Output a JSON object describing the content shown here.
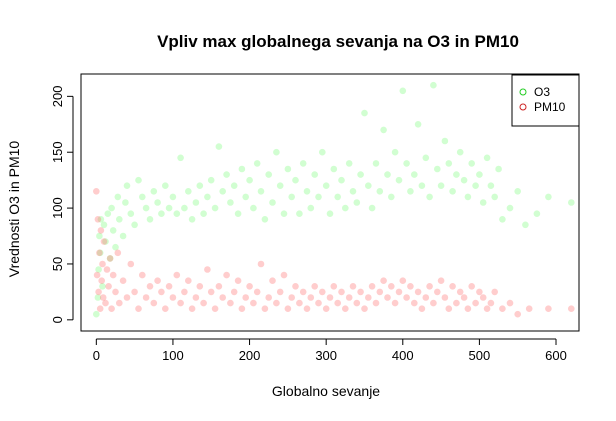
{
  "chart_data": {
    "type": "scatter",
    "title": "Vpliv max globalnega sevanja na O3 in PM10",
    "xlabel": "Globalno sevanje",
    "ylabel": "Vrednosti O3 in PM10",
    "xlim": [
      -20,
      630
    ],
    "ylim": [
      -10,
      220
    ],
    "xticks": [
      0,
      100,
      200,
      300,
      400,
      500,
      600
    ],
    "yticks": [
      0,
      50,
      100,
      150,
      200
    ],
    "grid": false,
    "legend_position": "top-right",
    "series": [
      {
        "name": "O3",
        "color": "#7CFC7C",
        "point_style": "filled-circle-translucent",
        "points": [
          [
            0,
            5
          ],
          [
            2,
            20
          ],
          [
            3,
            45
          ],
          [
            5,
            60
          ],
          [
            4,
            75
          ],
          [
            6,
            90
          ],
          [
            8,
            30
          ],
          [
            10,
            85
          ],
          [
            12,
            70
          ],
          [
            15,
            95
          ],
          [
            18,
            55
          ],
          [
            20,
            100
          ],
          [
            22,
            80
          ],
          [
            25,
            65
          ],
          [
            28,
            110
          ],
          [
            30,
            90
          ],
          [
            35,
            75
          ],
          [
            38,
            105
          ],
          [
            40,
            120
          ],
          [
            45,
            95
          ],
          [
            50,
            85
          ],
          [
            55,
            125
          ],
          [
            60,
            110
          ],
          [
            65,
            100
          ],
          [
            70,
            90
          ],
          [
            75,
            115
          ],
          [
            80,
            105
          ],
          [
            85,
            95
          ],
          [
            90,
            120
          ],
          [
            95,
            100
          ],
          [
            100,
            110
          ],
          [
            105,
            95
          ],
          [
            110,
            145
          ],
          [
            115,
            100
          ],
          [
            120,
            115
          ],
          [
            125,
            90
          ],
          [
            130,
            105
          ],
          [
            135,
            120
          ],
          [
            140,
            95
          ],
          [
            145,
            110
          ],
          [
            150,
            125
          ],
          [
            155,
            100
          ],
          [
            160,
            155
          ],
          [
            165,
            115
          ],
          [
            170,
            130
          ],
          [
            175,
            105
          ],
          [
            180,
            120
          ],
          [
            185,
            95
          ],
          [
            190,
            135
          ],
          [
            195,
            110
          ],
          [
            200,
            125
          ],
          [
            205,
            100
          ],
          [
            210,
            140
          ],
          [
            215,
            115
          ],
          [
            220,
            90
          ],
          [
            225,
            130
          ],
          [
            230,
            105
          ],
          [
            235,
            150
          ],
          [
            240,
            120
          ],
          [
            245,
            95
          ],
          [
            250,
            135
          ],
          [
            255,
            110
          ],
          [
            260,
            125
          ],
          [
            265,
            95
          ],
          [
            270,
            140
          ],
          [
            275,
            115
          ],
          [
            280,
            100
          ],
          [
            285,
            130
          ],
          [
            290,
            110
          ],
          [
            295,
            150
          ],
          [
            300,
            120
          ],
          [
            305,
            95
          ],
          [
            310,
            135
          ],
          [
            315,
            110
          ],
          [
            320,
            125
          ],
          [
            325,
            100
          ],
          [
            330,
            140
          ],
          [
            335,
            115
          ],
          [
            340,
            105
          ],
          [
            345,
            130
          ],
          [
            350,
            185
          ],
          [
            355,
            120
          ],
          [
            360,
            100
          ],
          [
            365,
            140
          ],
          [
            370,
            115
          ],
          [
            375,
            170
          ],
          [
            380,
            130
          ],
          [
            385,
            110
          ],
          [
            390,
            150
          ],
          [
            395,
            125
          ],
          [
            400,
            205
          ],
          [
            405,
            140
          ],
          [
            410,
            115
          ],
          [
            415,
            130
          ],
          [
            420,
            175
          ],
          [
            425,
            120
          ],
          [
            430,
            145
          ],
          [
            435,
            110
          ],
          [
            440,
            210
          ],
          [
            445,
            135
          ],
          [
            450,
            120
          ],
          [
            455,
            160
          ],
          [
            460,
            140
          ],
          [
            465,
            115
          ],
          [
            470,
            130
          ],
          [
            475,
            150
          ],
          [
            480,
            125
          ],
          [
            485,
            110
          ],
          [
            490,
            140
          ],
          [
            495,
            120
          ],
          [
            500,
            130
          ],
          [
            505,
            105
          ],
          [
            510,
            145
          ],
          [
            515,
            120
          ],
          [
            520,
            110
          ],
          [
            525,
            135
          ],
          [
            530,
            90
          ],
          [
            540,
            100
          ],
          [
            550,
            115
          ],
          [
            560,
            85
          ],
          [
            575,
            95
          ],
          [
            590,
            110
          ],
          [
            620,
            105
          ]
        ]
      },
      {
        "name": "PM10",
        "color": "#FF7070",
        "point_style": "filled-circle-translucent",
        "points": [
          [
            0,
            115
          ],
          [
            1,
            40
          ],
          [
            2,
            90
          ],
          [
            3,
            25
          ],
          [
            4,
            60
          ],
          [
            5,
            10
          ],
          [
            6,
            80
          ],
          [
            7,
            35
          ],
          [
            8,
            50
          ],
          [
            9,
            20
          ],
          [
            10,
            70
          ],
          [
            12,
            15
          ],
          [
            14,
            45
          ],
          [
            16,
            30
          ],
          [
            18,
            55
          ],
          [
            20,
            10
          ],
          [
            22,
            40
          ],
          [
            25,
            25
          ],
          [
            28,
            60
          ],
          [
            30,
            15
          ],
          [
            35,
            35
          ],
          [
            40,
            20
          ],
          [
            45,
            50
          ],
          [
            50,
            25
          ],
          [
            55,
            10
          ],
          [
            60,
            40
          ],
          [
            65,
            20
          ],
          [
            70,
            30
          ],
          [
            75,
            15
          ],
          [
            80,
            35
          ],
          [
            85,
            25
          ],
          [
            90,
            10
          ],
          [
            95,
            30
          ],
          [
            100,
            20
          ],
          [
            105,
            40
          ],
          [
            110,
            15
          ],
          [
            115,
            25
          ],
          [
            120,
            35
          ],
          [
            125,
            10
          ],
          [
            130,
            20
          ],
          [
            135,
            30
          ],
          [
            140,
            15
          ],
          [
            145,
            45
          ],
          [
            150,
            25
          ],
          [
            155,
            10
          ],
          [
            160,
            30
          ],
          [
            165,
            20
          ],
          [
            170,
            40
          ],
          [
            175,
            15
          ],
          [
            180,
            25
          ],
          [
            185,
            35
          ],
          [
            190,
            10
          ],
          [
            195,
            20
          ],
          [
            200,
            30
          ],
          [
            205,
            15
          ],
          [
            210,
            25
          ],
          [
            215,
            50
          ],
          [
            220,
            10
          ],
          [
            225,
            20
          ],
          [
            230,
            35
          ],
          [
            235,
            15
          ],
          [
            240,
            25
          ],
          [
            245,
            40
          ],
          [
            250,
            10
          ],
          [
            255,
            20
          ],
          [
            260,
            30
          ],
          [
            265,
            15
          ],
          [
            270,
            25
          ],
          [
            275,
            10
          ],
          [
            280,
            20
          ],
          [
            285,
            30
          ],
          [
            290,
            15
          ],
          [
            295,
            25
          ],
          [
            300,
            10
          ],
          [
            305,
            20
          ],
          [
            310,
            30
          ],
          [
            315,
            15
          ],
          [
            320,
            25
          ],
          [
            325,
            10
          ],
          [
            330,
            20
          ],
          [
            335,
            30
          ],
          [
            340,
            15
          ],
          [
            345,
            25
          ],
          [
            350,
            10
          ],
          [
            355,
            20
          ],
          [
            360,
            30
          ],
          [
            365,
            15
          ],
          [
            370,
            25
          ],
          [
            375,
            35
          ],
          [
            380,
            20
          ],
          [
            385,
            30
          ],
          [
            390,
            15
          ],
          [
            395,
            25
          ],
          [
            400,
            35
          ],
          [
            405,
            20
          ],
          [
            410,
            30
          ],
          [
            415,
            15
          ],
          [
            420,
            25
          ],
          [
            425,
            10
          ],
          [
            430,
            20
          ],
          [
            435,
            30
          ],
          [
            440,
            15
          ],
          [
            445,
            25
          ],
          [
            450,
            35
          ],
          [
            455,
            20
          ],
          [
            460,
            10
          ],
          [
            465,
            30
          ],
          [
            470,
            15
          ],
          [
            475,
            25
          ],
          [
            480,
            20
          ],
          [
            485,
            10
          ],
          [
            490,
            30
          ],
          [
            495,
            15
          ],
          [
            500,
            25
          ],
          [
            505,
            20
          ],
          [
            510,
            10
          ],
          [
            515,
            15
          ],
          [
            520,
            25
          ],
          [
            530,
            10
          ],
          [
            540,
            15
          ],
          [
            550,
            5
          ],
          [
            565,
            10
          ],
          [
            590,
            10
          ],
          [
            620,
            10
          ]
        ]
      }
    ]
  }
}
